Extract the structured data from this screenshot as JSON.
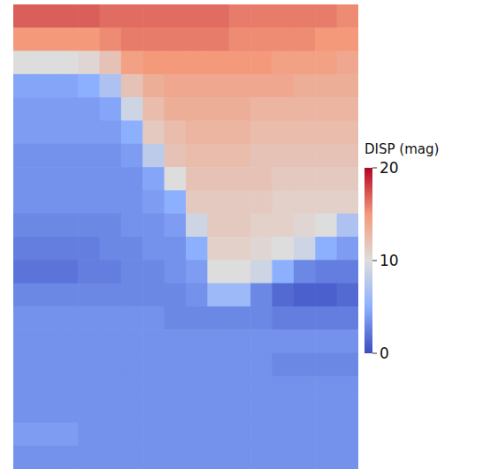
{
  "chart_data": {
    "type": "heatmap",
    "xlim": [
      0,
      16
    ],
    "ylim": [
      0,
      20
    ],
    "tick_labels": false,
    "colorbar_label": "DISP (mag)",
    "colorbar_range": [
      0,
      20
    ],
    "colorbar_ticks": [
      0,
      10,
      20
    ],
    "cells": [
      [
        17,
        17,
        17,
        17,
        16.5,
        16.5,
        16.5,
        16.5,
        16.5,
        16.5,
        16,
        16,
        16,
        16,
        16,
        15.5
      ],
      [
        15,
        15,
        15,
        15,
        15.5,
        16,
        16,
        16,
        16,
        16,
        15.5,
        15.5,
        15.5,
        15.5,
        15,
        15
      ],
      [
        10,
        10,
        10,
        10.5,
        12,
        14.5,
        15,
        15,
        15,
        15,
        15,
        15,
        14.5,
        14.5,
        14.5,
        14
      ],
      [
        4.5,
        4.5,
        4.5,
        5,
        7,
        12,
        13.5,
        14,
        14,
        14,
        14,
        14,
        14,
        13.5,
        13.5,
        13.5
      ],
      [
        4,
        4,
        4,
        4,
        4.5,
        9,
        12.5,
        13.5,
        13.5,
        13.5,
        13.5,
        13,
        13,
        13,
        13,
        13
      ],
      [
        4,
        4,
        4,
        4,
        4,
        5,
        11.5,
        12.5,
        13,
        13,
        13,
        12.5,
        12.5,
        12.5,
        12.5,
        12.5
      ],
      [
        3.5,
        3.5,
        3.5,
        3.5,
        3.5,
        4,
        8,
        12,
        12.5,
        12.5,
        12.5,
        12,
        12,
        12,
        12,
        12
      ],
      [
        3.5,
        3.5,
        3.5,
        3.5,
        3.5,
        3.5,
        4.5,
        10,
        12,
        12,
        12,
        12,
        11.5,
        11.5,
        11.5,
        11.5
      ],
      [
        3.5,
        3.5,
        3.5,
        3.5,
        3.5,
        3.5,
        4,
        5,
        11.5,
        11.5,
        11.5,
        11.5,
        11,
        11,
        11,
        11
      ],
      [
        3,
        3,
        3,
        3,
        3,
        3.5,
        3.5,
        4,
        9,
        11.5,
        11.5,
        11,
        11,
        10.5,
        10,
        7
      ],
      [
        2.5,
        2.5,
        2.5,
        2.5,
        3,
        3,
        3.5,
        3.5,
        5,
        11,
        11,
        10.5,
        10,
        9,
        5,
        4
      ],
      [
        2,
        2,
        2,
        2.5,
        2.5,
        3,
        3,
        3.5,
        4,
        10,
        10,
        9,
        5,
        3,
        2.5,
        2.5
      ],
      [
        3,
        3,
        3,
        3,
        3,
        3,
        3,
        3,
        3.5,
        6,
        6,
        3,
        1.5,
        1,
        1,
        1.5
      ],
      [
        3.5,
        3.5,
        3.5,
        3.5,
        3.5,
        3.5,
        3.5,
        3,
        3,
        3,
        3,
        3,
        2.5,
        2.5,
        2.5,
        2.5
      ],
      [
        3.5,
        3.5,
        3.5,
        3.5,
        3.5,
        3.5,
        3.5,
        3.5,
        3.5,
        3.5,
        3.5,
        3.5,
        3.5,
        3.5,
        3.5,
        3.5
      ],
      [
        3.5,
        3.5,
        3.5,
        3.5,
        3.5,
        3.5,
        3.5,
        3.5,
        3.5,
        3.5,
        3.5,
        3.5,
        3,
        3,
        3,
        3
      ],
      [
        3.5,
        3.5,
        3.5,
        3.5,
        3.5,
        3.5,
        3.5,
        3.5,
        3.5,
        3.5,
        3.5,
        3.5,
        3.5,
        3.5,
        3.5,
        3.5
      ],
      [
        3.5,
        3.5,
        3.5,
        3.5,
        3.5,
        3.5,
        3.5,
        3.5,
        3.5,
        3.5,
        3.5,
        3.5,
        3.5,
        3.5,
        3.5,
        3.5
      ],
      [
        4,
        4,
        4,
        3.5,
        3.5,
        3.5,
        3.5,
        3.5,
        3.5,
        3.5,
        3.5,
        3.5,
        3.5,
        3.5,
        3.5,
        3.5
      ],
      [
        3.5,
        3.5,
        3.5,
        3.5,
        3.5,
        3.5,
        3.5,
        3.5,
        3.5,
        3.5,
        3.5,
        3.5,
        3.5,
        3.5,
        3.5,
        3.5
      ]
    ]
  }
}
